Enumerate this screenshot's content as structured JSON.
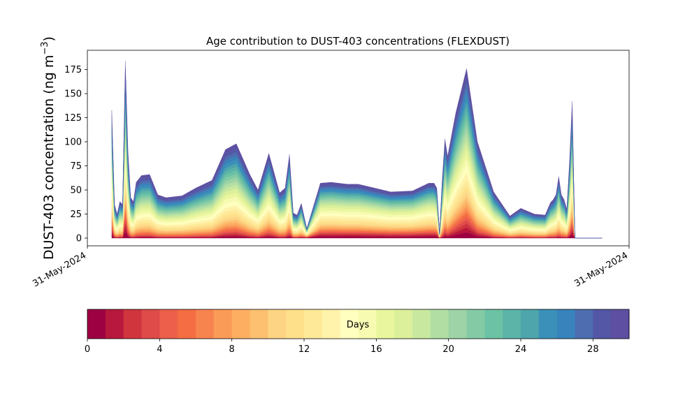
{
  "chart_data": {
    "type": "area",
    "stacked": true,
    "title": "Age contribution to DUST-403 concentrations (FLEXDUST)",
    "ylabel": "DUST-403 concentration (ng m⁻³)",
    "ylabel_main": "DUST-403 concentration (ng m",
    "ylabel_sup": "−3",
    "ylabel_close": ")",
    "xlabel": "",
    "ylim": [
      -8,
      195
    ],
    "yticks": [
      0,
      25,
      50,
      75,
      100,
      125,
      150,
      175
    ],
    "xticklabels": [
      "31-May-2024",
      "31-May-2024"
    ],
    "x_values_note": "",
    "x": [
      0.045,
      0.05,
      0.055,
      0.06,
      0.065,
      0.07,
      0.075,
      0.08,
      0.085,
      0.09,
      0.1,
      0.115,
      0.13,
      0.145,
      0.175,
      0.2,
      0.23,
      0.255,
      0.275,
      0.3,
      0.315,
      0.335,
      0.355,
      0.365,
      0.373,
      0.38,
      0.387,
      0.395,
      0.405,
      0.43,
      0.45,
      0.48,
      0.5,
      0.53,
      0.56,
      0.6,
      0.63,
      0.64,
      0.645,
      0.65,
      0.655,
      0.66,
      0.665,
      0.68,
      0.7,
      0.72,
      0.75,
      0.78,
      0.8,
      0.825,
      0.845,
      0.855,
      0.86,
      0.865,
      0.87,
      0.875,
      0.88,
      0.885,
      0.89,
      0.895,
      0.9,
      0.91,
      0.925,
      0.95
    ],
    "total": [
      133,
      35,
      25,
      38,
      35,
      184,
      90,
      42,
      38,
      58,
      65,
      66,
      45,
      42,
      44,
      52,
      60,
      92,
      98,
      66,
      50,
      88,
      47,
      52,
      87,
      26,
      24,
      36,
      10,
      57,
      58,
      56,
      56,
      52,
      48,
      49,
      57,
      57,
      52,
      5,
      60,
      103,
      85,
      130,
      176,
      100,
      48,
      23,
      31,
      25,
      24,
      37,
      40,
      45,
      64,
      45,
      40,
      30,
      80,
      142,
      0,
      0,
      0,
      0
    ],
    "colorbar": {
      "label": "Days",
      "min": 0,
      "max": 30,
      "ticks": [
        0,
        4,
        8,
        12,
        16,
        20,
        24,
        28
      ]
    },
    "palette": [
      "#9e0142",
      "#b8183d",
      "#d0353e",
      "#de4b48",
      "#ed5f4b",
      "#f46d43",
      "#f7834f",
      "#fa9b58",
      "#fdae61",
      "#fdc070",
      "#fdd384",
      "#fee08b",
      "#fee999",
      "#fff2aa",
      "#ffffbf",
      "#f7fbb2",
      "#eaf69e",
      "#dcf09b",
      "#c7e89e",
      "#b1dfa3",
      "#9dd3a6",
      "#84cba5",
      "#6bc2a4",
      "#5cb4a8",
      "#4ea5ac",
      "#3a90b9",
      "#3883bc",
      "#4d6db0",
      "#5357a5",
      "#5e4fa2"
    ]
  }
}
